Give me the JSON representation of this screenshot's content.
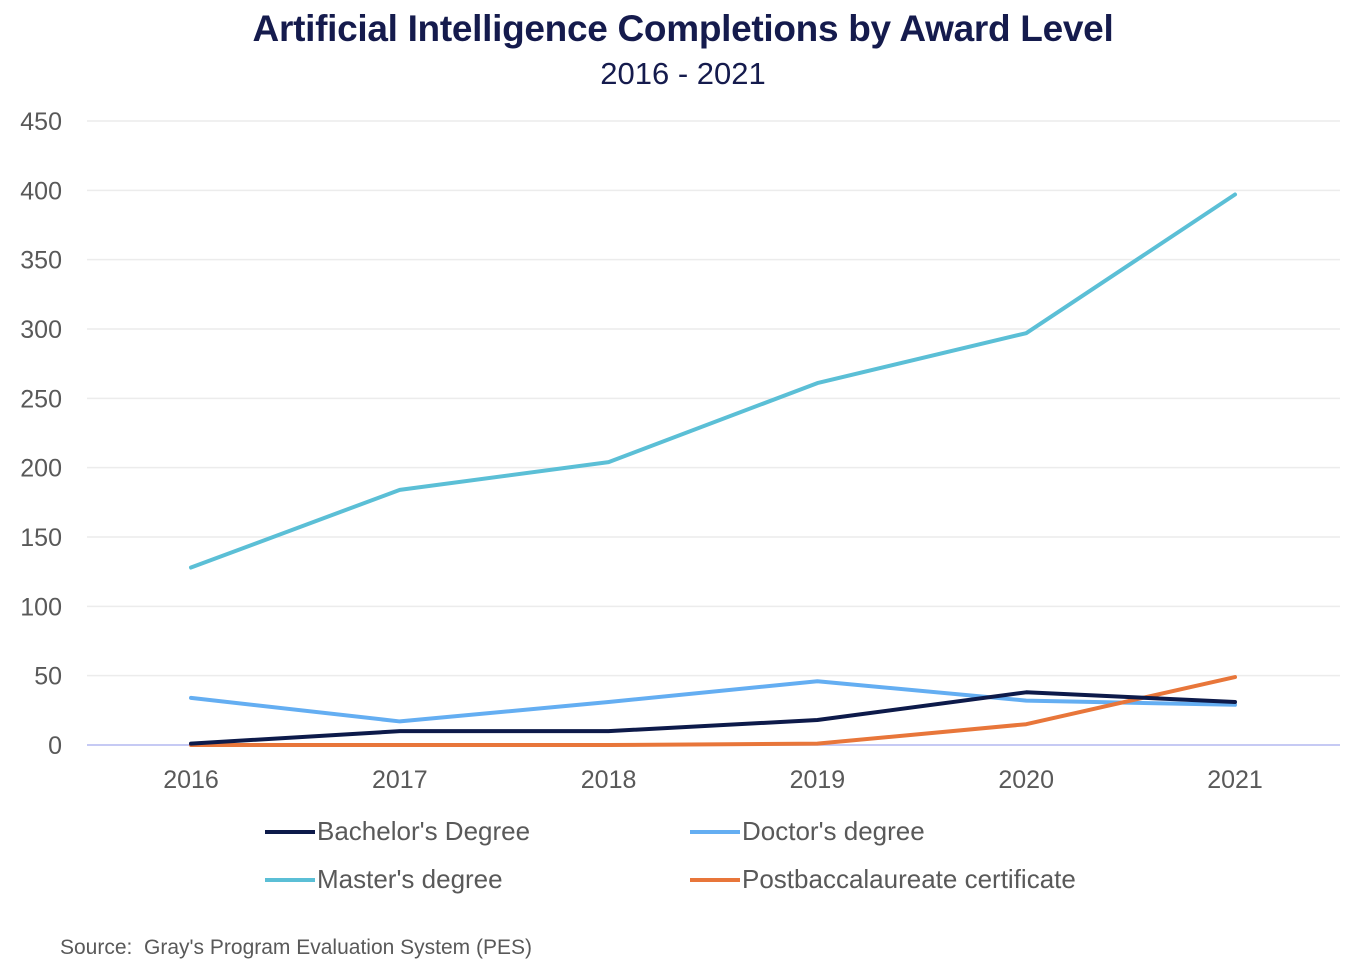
{
  "chart_data": {
    "type": "line",
    "title": "Artificial Intelligence Completions by Award Level",
    "subtitle": "2016 - 2021",
    "xlabel": "",
    "ylabel": "",
    "x": [
      "2016",
      "2017",
      "2018",
      "2019",
      "2020",
      "2021"
    ],
    "ylim": [
      0,
      450
    ],
    "yticks": [
      "0",
      "50",
      "100",
      "150",
      "200",
      "250",
      "300",
      "350",
      "400",
      "450"
    ],
    "grid": true,
    "legend_position": "bottom",
    "series": [
      {
        "name": "Bachelor's Degree",
        "color": "#0d1a4a",
        "values": [
          1,
          10,
          10,
          18,
          38,
          31
        ]
      },
      {
        "name": "Doctor's degree",
        "color": "#64aef2",
        "values": [
          34,
          17,
          31,
          46,
          32,
          29
        ]
      },
      {
        "name": "Master's degree",
        "color": "#5bbfd6",
        "values": [
          128,
          184,
          204,
          261,
          297,
          397
        ]
      },
      {
        "name": "Postbaccalaureate certificate",
        "color": "#e8763a",
        "values": [
          0,
          0,
          0,
          1,
          15,
          49
        ]
      }
    ],
    "source": "Source:  Gray's Program Evaluation System (PES)"
  }
}
